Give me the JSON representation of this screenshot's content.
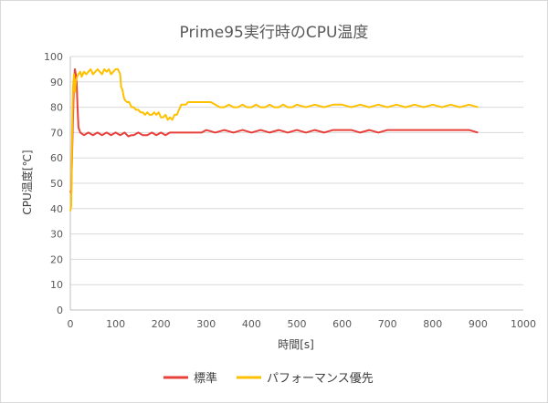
{
  "chart_data": {
    "type": "line",
    "title": "Prime95実行時のCPU温度",
    "xlabel": "時間[s]",
    "ylabel": "CPU温度[℃]",
    "xlim": [
      0,
      1000
    ],
    "ylim": [
      0,
      100
    ],
    "x_ticks": [
      0,
      100,
      200,
      300,
      400,
      500,
      600,
      700,
      800,
      900,
      1000
    ],
    "y_ticks": [
      0,
      10,
      20,
      30,
      40,
      50,
      60,
      70,
      80,
      90,
      100
    ],
    "grid": "horizontal",
    "legend_position": "bottom",
    "series": [
      {
        "name": "標準",
        "color": "#e8403b",
        "points": [
          [
            0,
            47
          ],
          [
            2,
            46
          ],
          [
            5,
            70
          ],
          [
            8,
            90
          ],
          [
            10,
            95
          ],
          [
            12,
            93
          ],
          [
            14,
            90
          ],
          [
            16,
            80
          ],
          [
            18,
            72
          ],
          [
            20,
            71
          ],
          [
            22,
            70
          ],
          [
            30,
            69
          ],
          [
            40,
            70
          ],
          [
            50,
            69
          ],
          [
            60,
            70
          ],
          [
            70,
            69
          ],
          [
            80,
            70
          ],
          [
            90,
            69
          ],
          [
            100,
            70
          ],
          [
            110,
            69
          ],
          [
            120,
            70
          ],
          [
            128,
            68.5
          ],
          [
            135,
            69
          ],
          [
            140,
            69
          ],
          [
            150,
            70
          ],
          [
            160,
            69
          ],
          [
            170,
            69
          ],
          [
            180,
            70
          ],
          [
            190,
            69
          ],
          [
            200,
            70
          ],
          [
            210,
            69
          ],
          [
            220,
            70
          ],
          [
            230,
            70
          ],
          [
            250,
            70
          ],
          [
            270,
            70
          ],
          [
            290,
            70
          ],
          [
            300,
            71
          ],
          [
            320,
            70
          ],
          [
            340,
            71
          ],
          [
            360,
            70
          ],
          [
            380,
            71
          ],
          [
            400,
            70
          ],
          [
            420,
            71
          ],
          [
            440,
            70
          ],
          [
            460,
            71
          ],
          [
            480,
            70
          ],
          [
            500,
            71
          ],
          [
            520,
            70
          ],
          [
            540,
            71
          ],
          [
            560,
            70
          ],
          [
            580,
            71
          ],
          [
            600,
            71
          ],
          [
            620,
            71
          ],
          [
            640,
            70
          ],
          [
            660,
            71
          ],
          [
            680,
            70
          ],
          [
            700,
            71
          ],
          [
            720,
            71
          ],
          [
            740,
            71
          ],
          [
            760,
            71
          ],
          [
            780,
            71
          ],
          [
            800,
            71
          ],
          [
            820,
            71
          ],
          [
            840,
            71
          ],
          [
            860,
            71
          ],
          [
            880,
            71
          ],
          [
            900,
            70
          ]
        ]
      },
      {
        "name": "パフォーマンス優先",
        "color": "#ffc000",
        "points": [
          [
            0,
            39
          ],
          [
            2,
            41
          ],
          [
            4,
            70
          ],
          [
            6,
            88
          ],
          [
            8,
            93
          ],
          [
            10,
            86
          ],
          [
            12,
            90
          ],
          [
            15,
            92
          ],
          [
            18,
            93
          ],
          [
            22,
            94
          ],
          [
            25,
            92
          ],
          [
            30,
            94
          ],
          [
            35,
            93
          ],
          [
            40,
            94
          ],
          [
            45,
            95
          ],
          [
            50,
            93
          ],
          [
            55,
            94
          ],
          [
            60,
            95
          ],
          [
            65,
            94
          ],
          [
            70,
            93
          ],
          [
            75,
            95
          ],
          [
            80,
            94
          ],
          [
            85,
            95
          ],
          [
            90,
            93
          ],
          [
            95,
            94
          ],
          [
            100,
            95
          ],
          [
            105,
            95
          ],
          [
            110,
            93
          ],
          [
            112,
            88
          ],
          [
            115,
            87
          ],
          [
            118,
            84
          ],
          [
            120,
            83
          ],
          [
            125,
            82
          ],
          [
            130,
            82
          ],
          [
            135,
            80
          ],
          [
            140,
            80
          ],
          [
            145,
            79
          ],
          [
            150,
            79
          ],
          [
            155,
            78
          ],
          [
            160,
            78
          ],
          [
            165,
            77
          ],
          [
            170,
            78
          ],
          [
            175,
            77
          ],
          [
            180,
            77
          ],
          [
            185,
            78
          ],
          [
            190,
            77
          ],
          [
            195,
            78
          ],
          [
            200,
            76
          ],
          [
            205,
            76
          ],
          [
            210,
            77
          ],
          [
            215,
            75
          ],
          [
            220,
            76
          ],
          [
            225,
            75
          ],
          [
            230,
            77
          ],
          [
            235,
            77
          ],
          [
            240,
            79
          ],
          [
            245,
            81
          ],
          [
            250,
            81
          ],
          [
            255,
            81
          ],
          [
            260,
            82
          ],
          [
            270,
            82
          ],
          [
            280,
            82
          ],
          [
            290,
            82
          ],
          [
            300,
            82
          ],
          [
            310,
            82
          ],
          [
            320,
            81
          ],
          [
            330,
            80
          ],
          [
            340,
            80
          ],
          [
            350,
            81
          ],
          [
            360,
            80
          ],
          [
            370,
            80
          ],
          [
            380,
            81
          ],
          [
            390,
            80
          ],
          [
            400,
            80
          ],
          [
            410,
            81
          ],
          [
            420,
            80
          ],
          [
            430,
            80
          ],
          [
            440,
            81
          ],
          [
            450,
            80
          ],
          [
            460,
            80
          ],
          [
            470,
            81
          ],
          [
            480,
            80
          ],
          [
            490,
            80
          ],
          [
            500,
            81
          ],
          [
            520,
            80
          ],
          [
            540,
            81
          ],
          [
            560,
            80
          ],
          [
            580,
            81
          ],
          [
            600,
            81
          ],
          [
            620,
            80
          ],
          [
            640,
            81
          ],
          [
            660,
            80
          ],
          [
            680,
            81
          ],
          [
            700,
            80
          ],
          [
            720,
            81
          ],
          [
            740,
            80
          ],
          [
            760,
            81
          ],
          [
            780,
            80
          ],
          [
            800,
            81
          ],
          [
            820,
            80
          ],
          [
            840,
            81
          ],
          [
            860,
            80
          ],
          [
            880,
            81
          ],
          [
            900,
            80
          ]
        ]
      }
    ]
  }
}
